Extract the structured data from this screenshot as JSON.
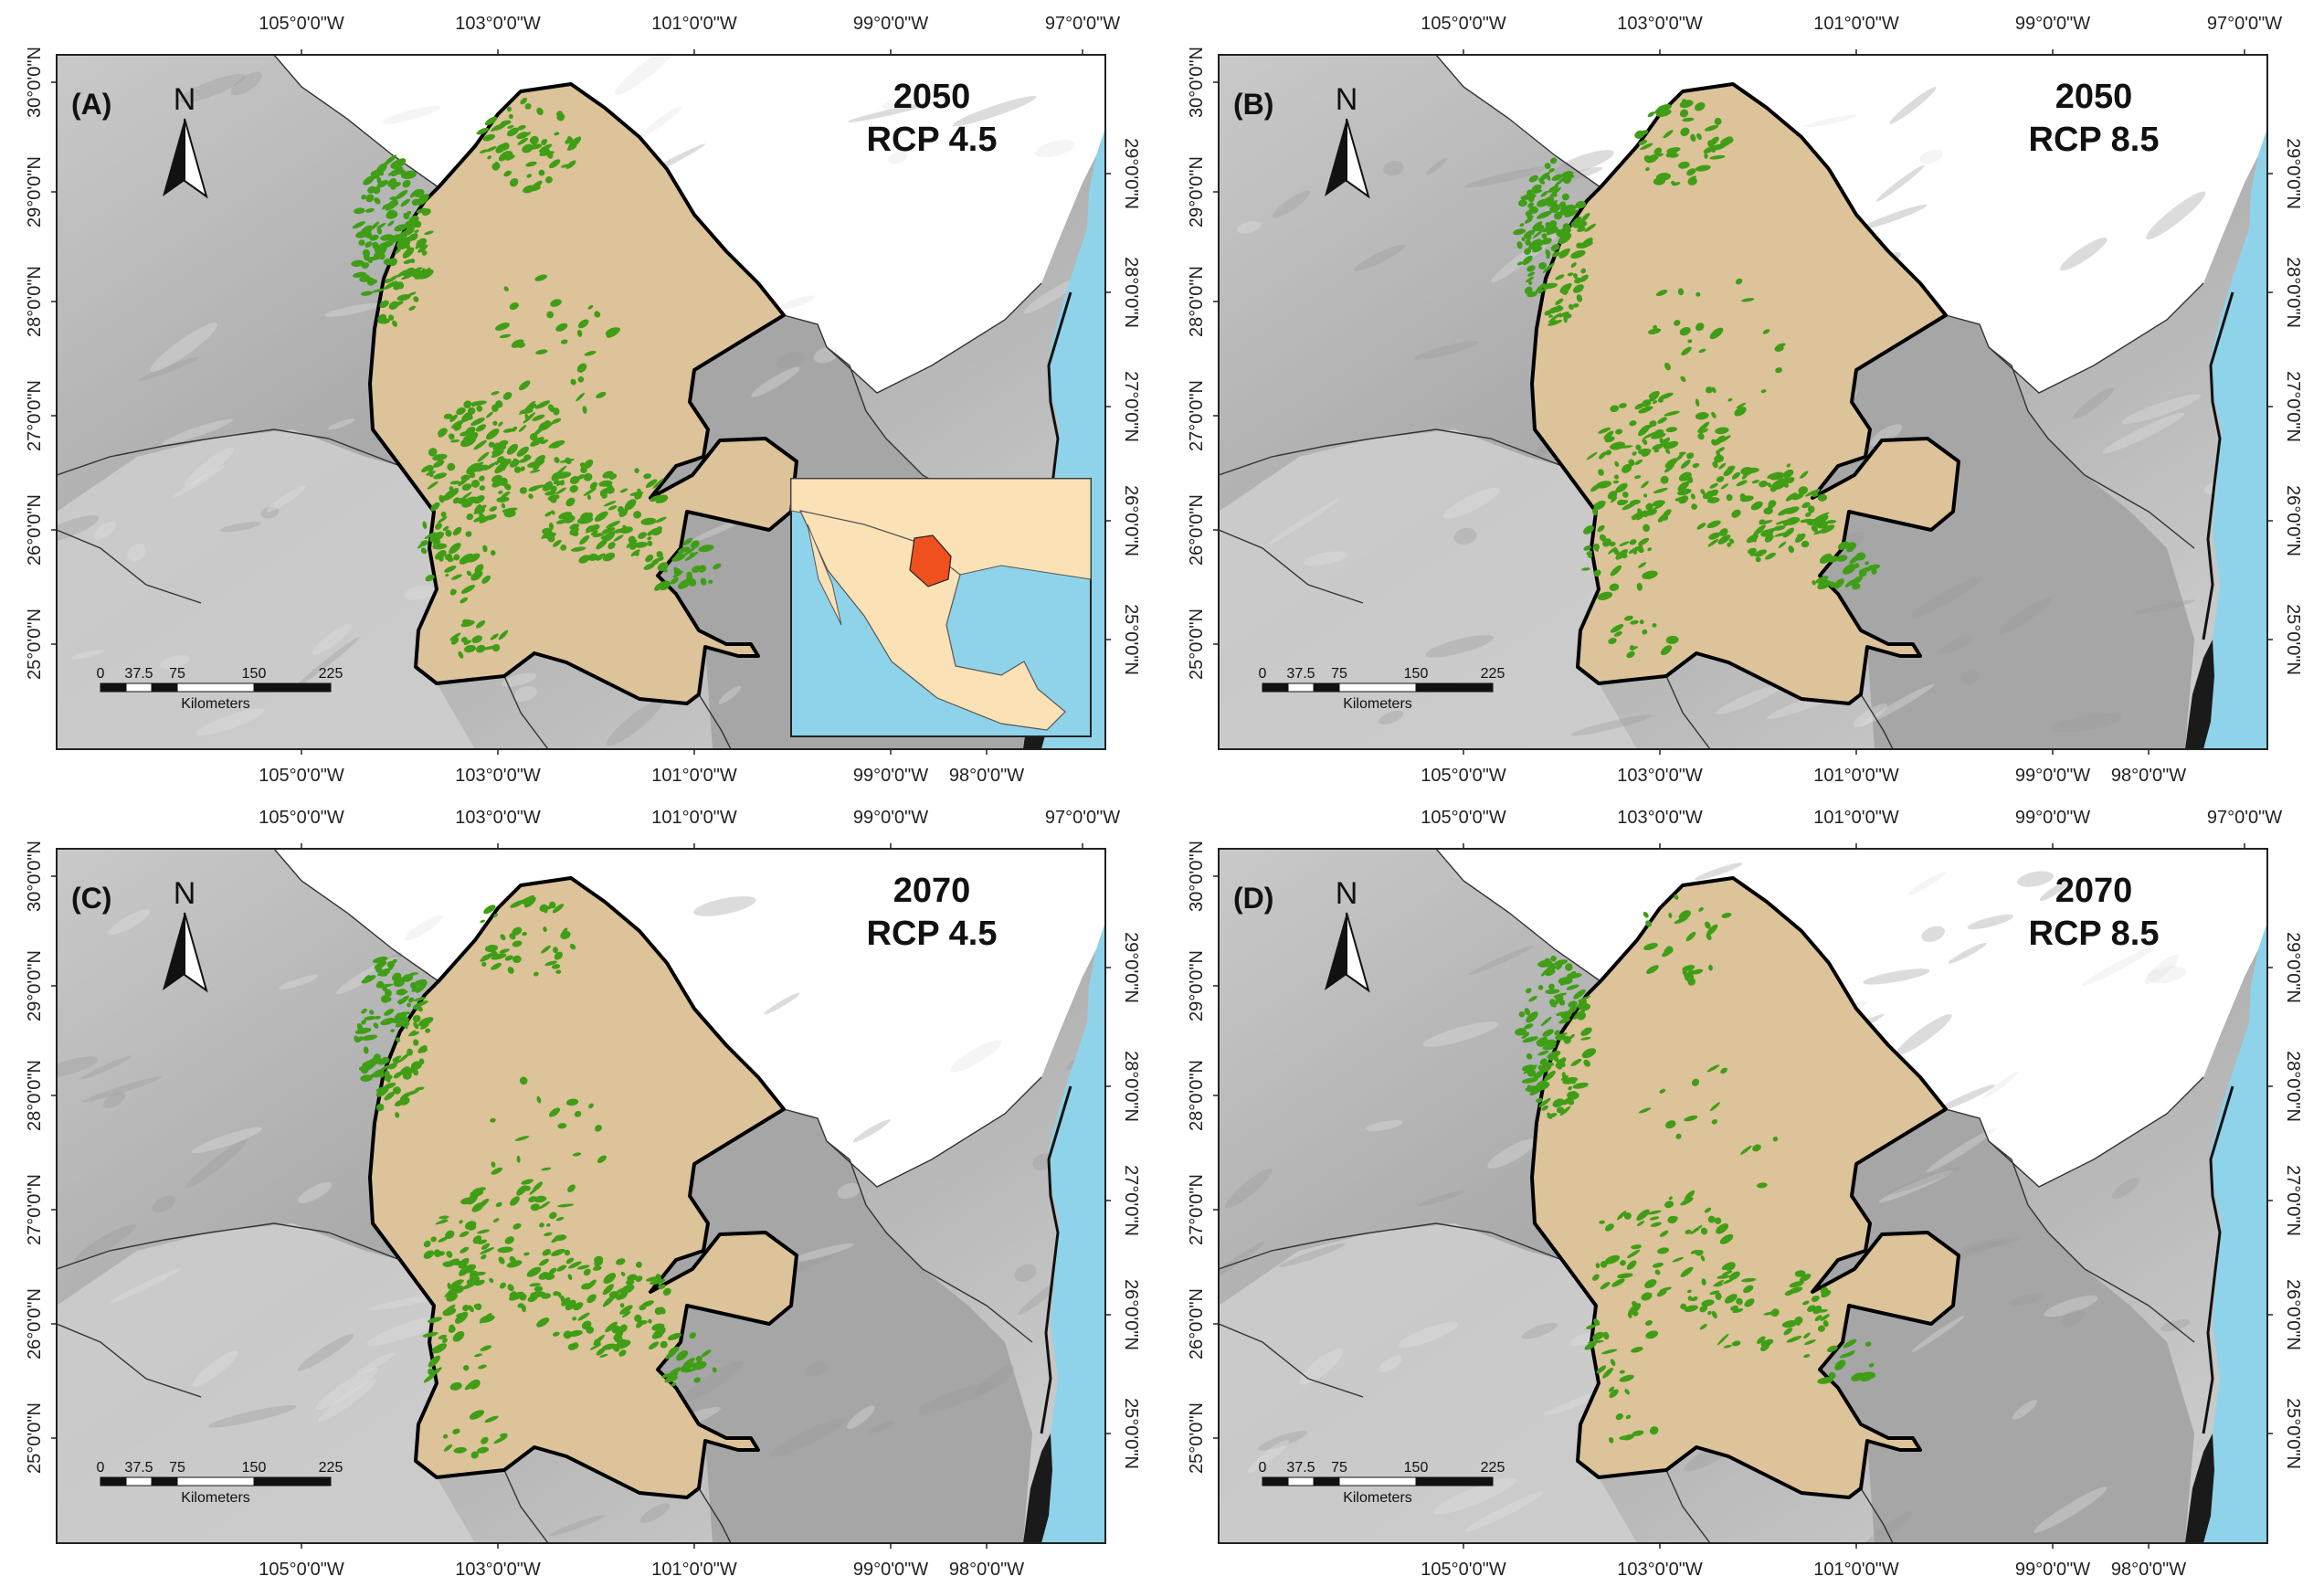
{
  "colors": {
    "ocean": "#8fd3ea",
    "state_fill": "#dcc39a",
    "terrain": "#b9b9b9",
    "terrain_light": "#d6d6d6",
    "habitat": "#3f9e16",
    "inset_land": "#fbe2b6",
    "inset_highlight": "#f0501e"
  },
  "axes": {
    "top_lon_labels": [
      "105°0'0\"W",
      "103°0'0\"W",
      "101°0'0\"W",
      "99°0'0\"W",
      "97°0'0\"W"
    ],
    "bottom_lon_labels": [
      "105°0'0\"W",
      "103°0'0\"W",
      "101°0'0\"W",
      "99°0'0\"W",
      "98°0'0\"W"
    ],
    "left_lat_labels": [
      "30°0'0\"N",
      "29°0'0\"N",
      "28°0'0\"N",
      "27°0'0\"N",
      "26°0'0\"N",
      "25°0'0\"N"
    ],
    "right_lat_labels": [
      "29°0'0\"N",
      "28°0'0\"N",
      "27°0'0\"N",
      "26°0'0\"N",
      "25°0'0\"N"
    ]
  },
  "north_arrow": {
    "letter": "N",
    "icon": "north-arrow-icon"
  },
  "scale_bar": {
    "ticks": [
      "0",
      "37.5",
      "75",
      "150",
      "225"
    ],
    "unit": "Kilometers"
  },
  "panels": [
    {
      "tag": "(A)",
      "year": "2050",
      "scenario": "RCP 4.5",
      "habitat_level": 0.8,
      "inset": true
    },
    {
      "tag": "(B)",
      "year": "2050",
      "scenario": "RCP 8.5",
      "habitat_level": 0.65,
      "inset": false
    },
    {
      "tag": "(C)",
      "year": "2070",
      "scenario": "RCP 4.5",
      "habitat_level": 0.55,
      "inset": false
    },
    {
      "tag": "(D)",
      "year": "2070",
      "scenario": "RCP 8.5",
      "habitat_level": 0.35,
      "inset": false
    }
  ]
}
